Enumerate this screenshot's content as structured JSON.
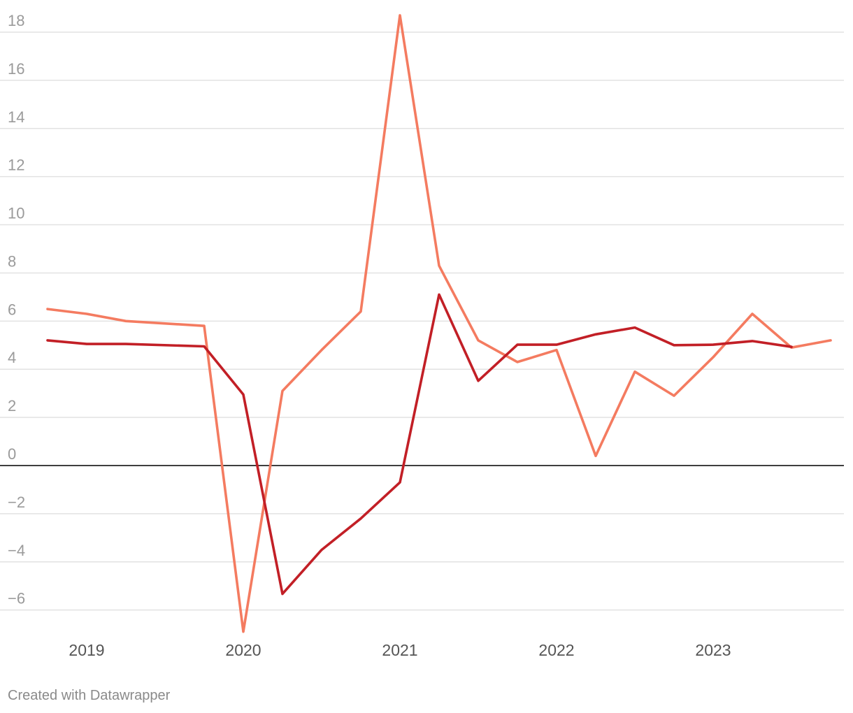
{
  "footer": {
    "credit": "Created with Datawrapper"
  },
  "chart_data": {
    "type": "line",
    "title": "",
    "xlabel": "",
    "ylabel": "",
    "ylim": [
      -7,
      18.8
    ],
    "xlim": [
      2018.75,
      2023.85
    ],
    "y_ticks": [
      18,
      16,
      14,
      12,
      10,
      8,
      6,
      4,
      2,
      0,
      -2,
      -4,
      -6
    ],
    "y_tick_labels": [
      "18",
      "16",
      "14",
      "12",
      "10",
      "8",
      "6",
      "4",
      "2",
      "0",
      "−2",
      "−4",
      "−6"
    ],
    "x_ticks": [
      2019,
      2020,
      2021,
      2022,
      2023
    ],
    "x_tick_labels": [
      "2019",
      "2020",
      "2021",
      "2022",
      "2023"
    ],
    "grid": true,
    "legend": "none",
    "series": [
      {
        "color": "#f47b60",
        "x": [
          2018.75,
          2019.0,
          2019.25,
          2019.75,
          2020.0,
          2020.25,
          2020.5,
          2020.75,
          2021.0,
          2021.25,
          2021.5,
          2021.75,
          2022.0,
          2022.25,
          2022.5,
          2022.75,
          2023.0,
          2023.25,
          2023.5,
          2023.75
        ],
        "values": [
          6.5,
          6.3,
          6.0,
          5.8,
          -6.9,
          3.1,
          4.8,
          6.4,
          18.7,
          8.3,
          5.2,
          4.3,
          4.8,
          0.4,
          3.9,
          2.9,
          4.5,
          6.3,
          4.9,
          5.2
        ]
      },
      {
        "color": "#c21f26",
        "x": [
          2018.75,
          2019.0,
          2019.25,
          2019.75,
          2020.0,
          2020.25,
          2020.5,
          2020.75,
          2021.0,
          2021.25,
          2021.5,
          2021.75,
          2022.0,
          2022.25,
          2022.5,
          2022.75,
          2023.0,
          2023.25,
          2023.5
        ],
        "values": [
          5.2,
          5.05,
          5.05,
          4.95,
          2.95,
          -5.33,
          -3.5,
          -2.2,
          -0.7,
          7.1,
          3.52,
          5.02,
          5.02,
          5.45,
          5.73,
          5.0,
          5.02,
          5.17,
          4.93
        ]
      }
    ]
  }
}
